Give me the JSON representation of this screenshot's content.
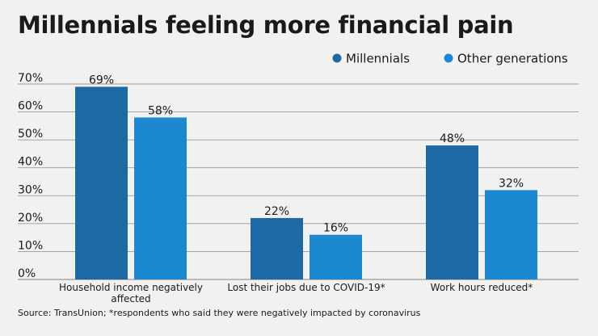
{
  "title": "Millennials feeling more financial pain",
  "source": "Source: TransUnion; *respondents who said they were negatively impacted by coronavirus",
  "colors": {
    "Millennials": "#1c69a3",
    "Other generations": "#1c88d2",
    "grid": "#9a9a9a",
    "background": "#f1f1f0"
  },
  "chart_data": {
    "type": "bar",
    "title": "Millennials feeling more financial pain",
    "xlabel": "",
    "ylabel": "",
    "ylim": [
      0,
      70
    ],
    "yticks": [
      "0%",
      "10%",
      "20%",
      "30%",
      "40%",
      "50%",
      "60%",
      "70%"
    ],
    "categories": [
      [
        "Household income negatively",
        "affected"
      ],
      [
        "Lost their jobs due to COVID-19*"
      ],
      [
        "Work hours reduced*"
      ]
    ],
    "series": [
      {
        "name": "Millennials",
        "values": [
          69,
          22,
          48
        ],
        "labels": [
          "69%",
          "22%",
          "48%"
        ]
      },
      {
        "name": "Other generations",
        "values": [
          58,
          16,
          32
        ],
        "labels": [
          "58%",
          "16%",
          "32%"
        ]
      }
    ],
    "legend": "top-right",
    "grid": true
  }
}
